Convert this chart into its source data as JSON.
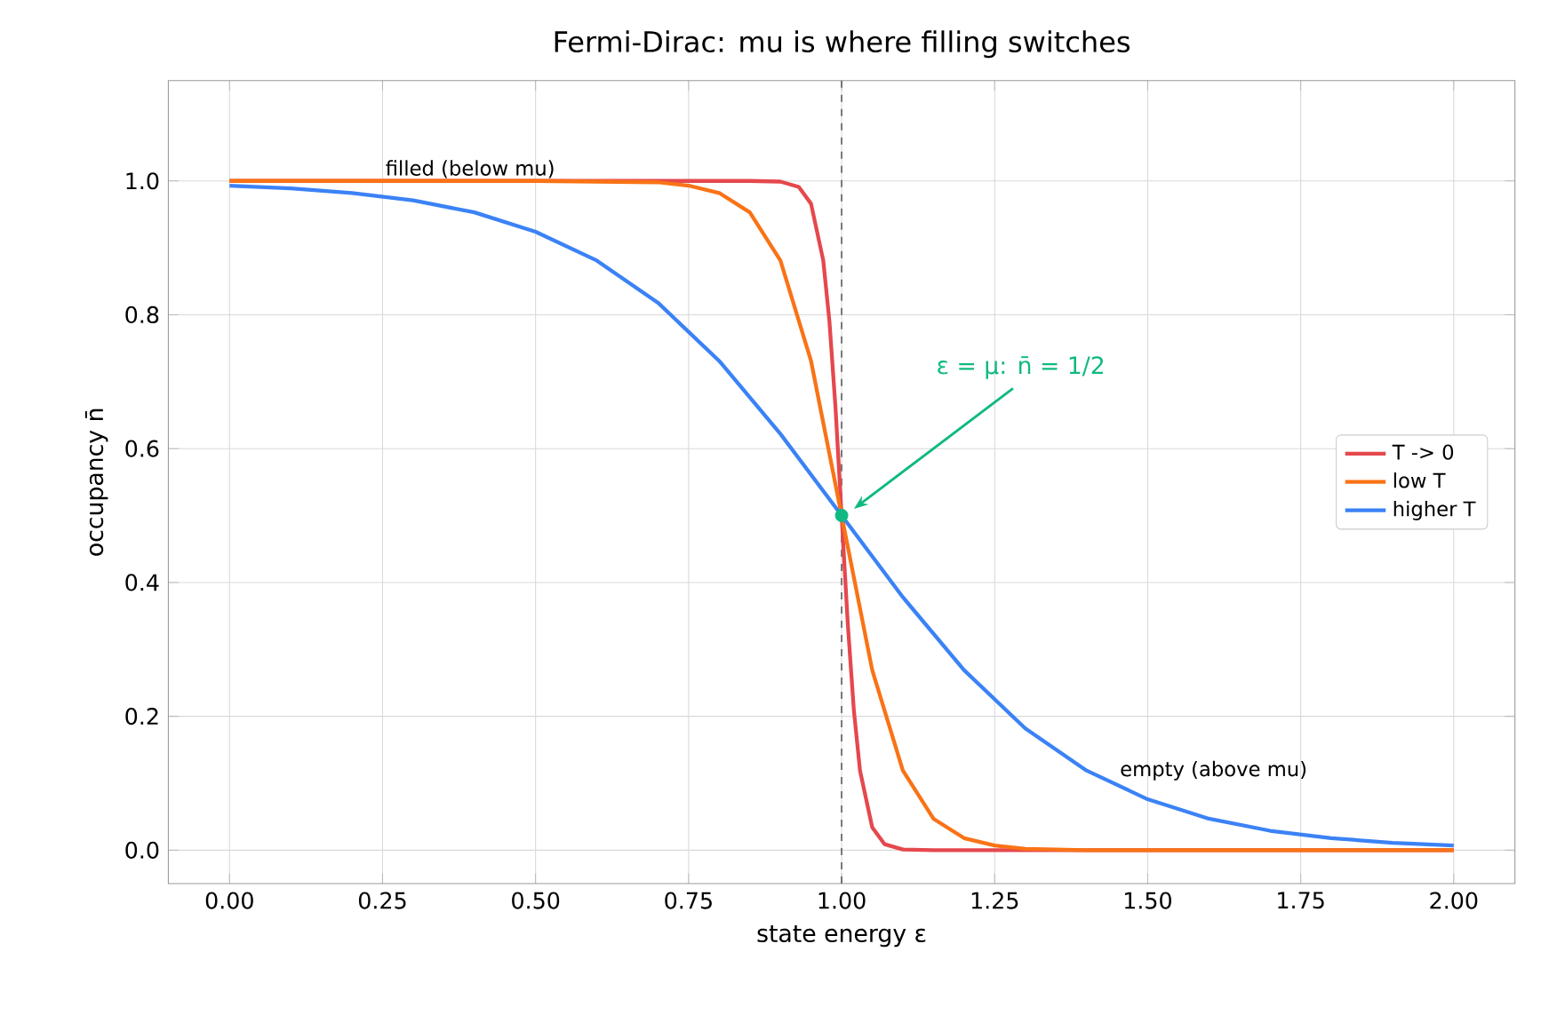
{
  "chart_data": {
    "type": "line",
    "title": "Fermi-Dirac: mu is where filling switches",
    "xlabel": "state energy ε",
    "ylabel": "occupancy n̄",
    "xlim": [
      -0.1,
      2.1
    ],
    "ylim": [
      -0.05,
      1.15
    ],
    "xticks": [
      {
        "value": 0,
        "label": "0.00"
      },
      {
        "value": 0.25,
        "label": "0.25"
      },
      {
        "value": 0.5,
        "label": "0.50"
      },
      {
        "value": 0.75,
        "label": "0.75"
      },
      {
        "value": 1,
        "label": "1.00"
      },
      {
        "value": 1.25,
        "label": "1.25"
      },
      {
        "value": 1.5,
        "label": "1.50"
      },
      {
        "value": 1.75,
        "label": "1.75"
      },
      {
        "value": 2,
        "label": "2.00"
      }
    ],
    "yticks": [
      {
        "value": 0,
        "label": "0.0"
      },
      {
        "value": 0.2,
        "label": "0.2"
      },
      {
        "value": 0.4,
        "label": "0.4"
      },
      {
        "value": 0.6,
        "label": "0.6"
      },
      {
        "value": 0.8,
        "label": "0.8"
      },
      {
        "value": 1,
        "label": "1.0"
      }
    ],
    "grid": true,
    "legend": "right",
    "marker": "none",
    "line_style": "solid",
    "series": [
      {
        "name": "T -> 0",
        "color": "#e5484d",
        "x": [
          0,
          0.5,
          0.85,
          0.9,
          0.93,
          0.95,
          0.97,
          0.98,
          0.99,
          1.0,
          1.01,
          1.02,
          1.03,
          1.05,
          1.07,
          1.1,
          1.15,
          1.5,
          2.0
        ],
        "values": [
          1.0,
          1.0,
          1.0,
          0.999,
          0.991,
          0.966,
          0.881,
          0.791,
          0.661,
          0.5,
          0.339,
          0.209,
          0.119,
          0.034,
          0.009,
          0.001,
          0.0,
          0.0,
          0.0
        ]
      },
      {
        "name": "low T",
        "color": "#f97316",
        "x": [
          0,
          0.5,
          0.7,
          0.75,
          0.8,
          0.85,
          0.9,
          0.95,
          1.0,
          1.05,
          1.1,
          1.15,
          1.2,
          1.25,
          1.3,
          1.4,
          1.6,
          2.0
        ],
        "values": [
          1.0,
          1.0,
          0.998,
          0.993,
          0.982,
          0.953,
          0.881,
          0.731,
          0.5,
          0.269,
          0.119,
          0.047,
          0.018,
          0.007,
          0.002,
          0.0,
          0.0,
          0.0
        ]
      },
      {
        "name": "higher T",
        "color": "#3b82f6",
        "x": [
          0,
          0.1,
          0.2,
          0.3,
          0.4,
          0.5,
          0.6,
          0.7,
          0.8,
          0.9,
          1.0,
          1.1,
          1.2,
          1.3,
          1.4,
          1.5,
          1.6,
          1.7,
          1.8,
          1.9,
          2.0
        ],
        "values": [
          0.993,
          0.989,
          0.982,
          0.971,
          0.953,
          0.924,
          0.881,
          0.818,
          0.731,
          0.622,
          0.5,
          0.378,
          0.269,
          0.182,
          0.119,
          0.076,
          0.047,
          0.029,
          0.018,
          0.011,
          0.007
        ]
      },
      {
        "type": "scatter",
        "color": "#10b981",
        "marker": "circle",
        "x": [
          1.0
        ],
        "values": [
          0.5
        ]
      }
    ],
    "ref_lines": [
      {
        "axis": "x",
        "value": 1.0,
        "color": "#555555",
        "line_style": "dashed"
      }
    ],
    "annotations": [
      "filled (below mu)",
      "empty (above mu)",
      "ε = μ:  n̄ = 1/2"
    ]
  }
}
